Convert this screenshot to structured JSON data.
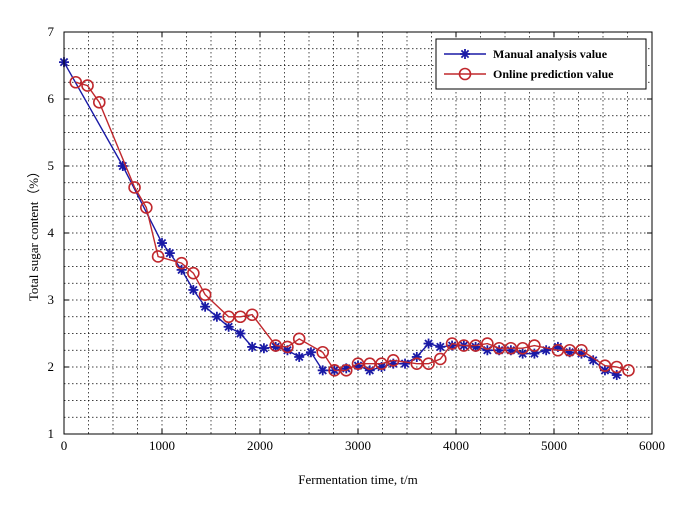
{
  "chart_data": {
    "type": "line",
    "title": "",
    "xlabel": "Fermentation time, t/m",
    "ylabel": "Total sugar content（%）",
    "xlim": [
      0,
      6000
    ],
    "ylim": [
      1,
      7
    ],
    "xticks": [
      0,
      1000,
      2000,
      3000,
      4000,
      5000,
      6000
    ],
    "yticks": [
      1,
      2,
      3,
      4,
      5,
      6,
      7
    ],
    "grid": true,
    "legend_position": "top-right",
    "series": [
      {
        "name": "Manual analysis value",
        "color": "#1a1aa6",
        "marker": "asterisk",
        "x": [
          0,
          600,
          1000,
          1080,
          1200,
          1320,
          1440,
          1560,
          1680,
          1800,
          1920,
          2040,
          2160,
          2280,
          2400,
          2520,
          2640,
          2760,
          2880,
          3000,
          3120,
          3240,
          3360,
          3480,
          3600,
          3720,
          3840,
          3960,
          4080,
          4200,
          4320,
          4440,
          4560,
          4680,
          4800,
          4920,
          5040,
          5160,
          5280,
          5400,
          5520,
          5640
        ],
        "y": [
          6.55,
          5.0,
          3.85,
          3.7,
          3.45,
          3.15,
          2.9,
          2.75,
          2.6,
          2.5,
          2.3,
          2.28,
          2.3,
          2.25,
          2.15,
          2.22,
          1.95,
          1.95,
          1.98,
          2.02,
          1.95,
          2.0,
          2.05,
          2.05,
          2.15,
          2.35,
          2.3,
          2.32,
          2.32,
          2.3,
          2.25,
          2.25,
          2.25,
          2.2,
          2.2,
          2.25,
          2.3,
          2.22,
          2.2,
          2.1,
          1.95,
          1.88
        ]
      },
      {
        "name": "Online prediction value",
        "color": "#c0282d",
        "marker": "circle",
        "x": [
          120,
          240,
          360,
          720,
          840,
          960,
          1200,
          1320,
          1440,
          1680,
          1800,
          1920,
          2160,
          2280,
          2400,
          2640,
          2760,
          2880,
          3000,
          3120,
          3240,
          3360,
          3600,
          3720,
          3840,
          3960,
          4080,
          4200,
          4320,
          4440,
          4560,
          4680,
          4800,
          5040,
          5160,
          5280,
          5520,
          5640,
          5760
        ],
        "y": [
          6.25,
          6.2,
          5.95,
          4.68,
          4.38,
          3.65,
          3.55,
          3.4,
          3.08,
          2.75,
          2.75,
          2.78,
          2.32,
          2.3,
          2.42,
          2.22,
          1.95,
          1.95,
          2.05,
          2.05,
          2.05,
          2.1,
          2.05,
          2.05,
          2.12,
          2.35,
          2.32,
          2.32,
          2.35,
          2.28,
          2.28,
          2.28,
          2.32,
          2.25,
          2.25,
          2.25,
          2.02,
          2.0,
          1.95
        ]
      }
    ]
  }
}
